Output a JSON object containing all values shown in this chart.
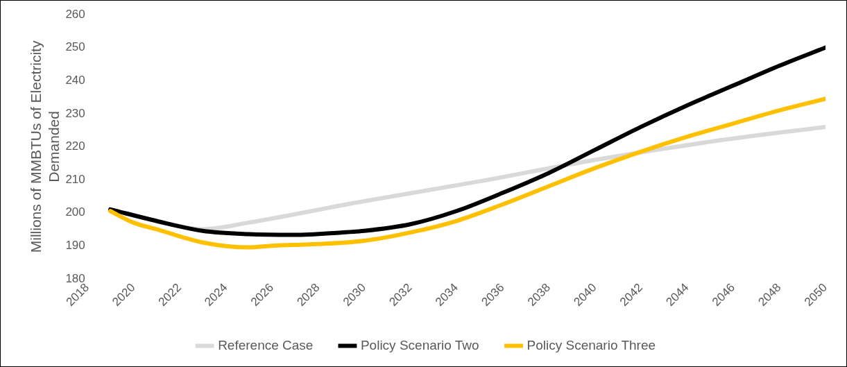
{
  "chart_data": {
    "type": "line",
    "ylabel": "Millions of MMBTUs of Electricity Demanded",
    "xlim": [
      2018,
      2050
    ],
    "xticks": [
      2018,
      2020,
      2022,
      2024,
      2026,
      2028,
      2030,
      2032,
      2034,
      2036,
      2038,
      2040,
      2042,
      2044,
      2046,
      2048,
      2050
    ],
    "ylim": [
      180,
      260
    ],
    "yticks": [
      180,
      190,
      200,
      210,
      220,
      230,
      240,
      250,
      260
    ],
    "grid": false,
    "legend": "bottom",
    "marker": "none",
    "line_style": "solid",
    "series": [
      {
        "name": "Reference Case",
        "color": "#d9d9d9",
        "x": [
          2019,
          2021,
          2023,
          2025,
          2030,
          2035,
          2040,
          2045,
          2050
        ],
        "values": [
          201,
          197.5,
          195,
          197,
          203.5,
          209.5,
          216,
          221.5,
          226
        ]
      },
      {
        "name": "Policy Scenario Two",
        "color": "#000000",
        "x": [
          2019,
          2021,
          2023,
          2025,
          2027,
          2029,
          2030,
          2032,
          2034,
          2036,
          2038,
          2040,
          2042,
          2044,
          2046,
          2048,
          2050
        ],
        "values": [
          201,
          197.5,
          194.5,
          193.5,
          193.3,
          194,
          194.5,
          196.5,
          200.5,
          206,
          212,
          219,
          226,
          232.5,
          238.5,
          244.5,
          250
        ]
      },
      {
        "name": "Policy Scenario Three",
        "color": "#ffc000",
        "x": [
          2019,
          2020,
          2021,
          2023,
          2025,
          2026,
          2028,
          2030,
          2032,
          2034,
          2036,
          2038,
          2040,
          2042,
          2044,
          2046,
          2048,
          2050
        ],
        "values": [
          200.5,
          197,
          195,
          191,
          189.5,
          190,
          190.5,
          191.5,
          194,
          197.5,
          202.5,
          208,
          213.5,
          218.5,
          223,
          227,
          231,
          234.5
        ]
      }
    ]
  }
}
